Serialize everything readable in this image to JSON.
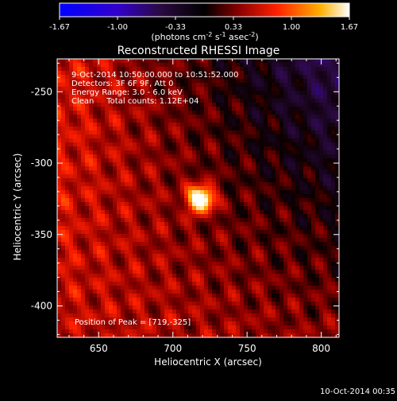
{
  "chart_data": {
    "type": "heatmap",
    "title": "Reconstructed RHESSI Image",
    "xlabel": "Heliocentric X (arcsec)",
    "ylabel": "Heliocentric Y (arcsec)",
    "xlim": [
      622,
      812
    ],
    "ylim": [
      -422,
      -227
    ],
    "x_ticks": [
      650,
      700,
      750,
      800
    ],
    "y_ticks": [
      -250,
      -300,
      -350,
      -400
    ],
    "colorbar": {
      "range": [
        -1.67,
        1.67
      ],
      "ticks": [
        "-1.67",
        "-1.00",
        "-0.33",
        "0.33",
        "1.00",
        "1.67"
      ],
      "unit_text": "(photons cm",
      "unit_exp1": "-2",
      "unit_mid": " s",
      "unit_exp2": "-1",
      "unit_end": " asec",
      "unit_exp3": "-2",
      "unit_close": ")"
    },
    "annotations": [
      "9-Oct-2014 10:50:00.000 to 10:51:52.000",
      "Detectors: 3F 6F 9F, Att 0",
      "Energy Range: 3.0 - 6.0 keV",
      "Clean     Total counts: 1.12E+04"
    ],
    "peak_label": "Position of Peak = [719,-325]",
    "peak": {
      "x": 719,
      "y": -325,
      "value": 1.67
    },
    "footer_date": "10-Oct-2014 00:35"
  }
}
